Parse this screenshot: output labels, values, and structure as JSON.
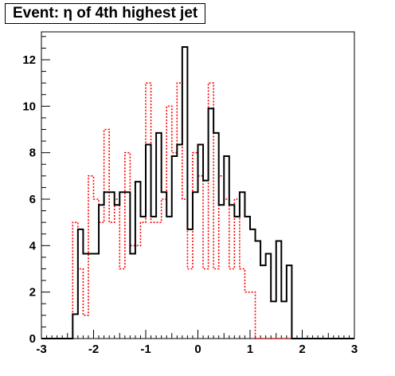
{
  "title": "Event: η of 4th highest jet",
  "chart_data": {
    "type": "histogram",
    "title": "Event: η of 4th highest jet",
    "xlabel": "",
    "ylabel": "",
    "xlim": [
      -3,
      3
    ],
    "ylim": [
      0,
      13.2
    ],
    "x_ticks": [
      -3,
      -2,
      -1,
      0,
      1,
      2,
      3
    ],
    "y_ticks": [
      0,
      2,
      4,
      6,
      8,
      10,
      12
    ],
    "bin_edges": [
      -3.0,
      -2.9,
      -2.8,
      -2.7,
      -2.6,
      -2.5,
      -2.4,
      -2.3,
      -2.2,
      -2.1,
      -2.0,
      -1.9,
      -1.8,
      -1.7,
      -1.6,
      -1.5,
      -1.4,
      -1.3,
      -1.2,
      -1.1,
      -1.0,
      -0.9,
      -0.8,
      -0.7,
      -0.6,
      -0.5,
      -0.4,
      -0.3,
      -0.2,
      -0.1,
      0.0,
      0.1,
      0.2,
      0.3,
      0.4,
      0.5,
      0.6,
      0.7,
      0.8,
      0.9,
      1.0,
      1.1,
      1.2,
      1.3,
      1.4,
      1.5,
      1.6,
      1.7,
      1.8,
      1.9,
      2.0,
      2.1,
      2.2,
      2.3,
      2.4,
      2.5,
      2.6,
      2.7,
      2.8,
      2.9,
      3.0
    ],
    "legend": "none",
    "grid": false,
    "series": [
      {
        "color": "#000000",
        "style": "solid",
        "values": [
          0,
          0,
          0,
          0,
          0,
          0,
          1.05,
          4.7,
          3.65,
          3.65,
          3.65,
          5.75,
          6.3,
          6.3,
          5.75,
          6.3,
          6.3,
          3.65,
          6.75,
          5.25,
          8.35,
          5.25,
          8.85,
          6.3,
          5.25,
          7.85,
          8.35,
          12.55,
          4.7,
          6.3,
          8.35,
          6.8,
          9.9,
          8.85,
          5.75,
          7.85,
          5.75,
          5.25,
          6.3,
          5.25,
          4.7,
          4.2,
          3.15,
          3.65,
          1.6,
          4.2,
          1.6,
          3.15,
          0,
          0,
          0,
          0,
          0,
          0,
          0,
          0,
          0,
          0,
          0,
          0
        ],
        "bin_start": -3.0,
        "bin_width": 0.1
      },
      {
        "color": "#ff0000",
        "style": "dotted",
        "values": [
          0,
          0,
          0,
          0,
          0,
          0,
          5.0,
          3.0,
          1.0,
          7.0,
          6.0,
          5.0,
          9.0,
          5.0,
          6.0,
          3.0,
          8.0,
          4.0,
          4.0,
          5.0,
          11.0,
          5.0,
          5.0,
          6.0,
          10.0,
          8.0,
          11.0,
          6.0,
          3.0,
          8.0,
          7.0,
          3.0,
          11.0,
          3.0,
          7.0,
          6.0,
          3.0,
          6.0,
          3.0,
          2.0,
          2.0,
          0,
          0,
          0,
          0,
          0,
          0,
          0,
          0,
          0,
          0,
          0,
          0,
          0,
          0,
          0,
          0,
          0,
          0,
          0
        ],
        "bin_start": -3.0,
        "bin_width": 0.1
      }
    ]
  }
}
